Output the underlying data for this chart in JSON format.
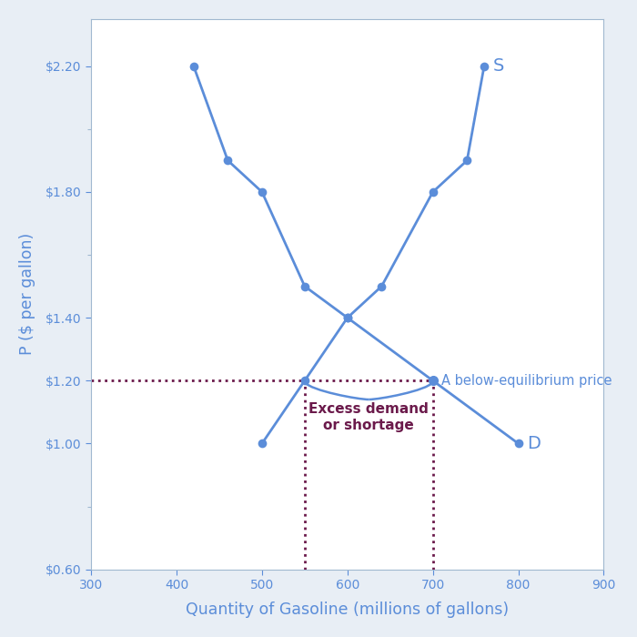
{
  "demand_x": [
    420,
    460,
    500,
    550,
    600,
    700,
    800
  ],
  "demand_y": [
    2.2,
    1.9,
    1.8,
    1.5,
    1.4,
    1.2,
    1.0
  ],
  "supply_x": [
    500,
    550,
    600,
    640,
    700,
    740,
    760
  ],
  "supply_y": [
    1.0,
    1.2,
    1.4,
    1.5,
    1.8,
    1.9,
    2.2
  ],
  "equilibrium_x": 600,
  "equilibrium_y": 1.4,
  "below_eq_price": 1.2,
  "supply_qty_at_below": 550,
  "demand_qty_at_below": 700,
  "curve_color": "#5b8dd9",
  "dashed_color": "#6b1a4b",
  "line_width": 2.0,
  "marker_size": 7,
  "xlabel": "Quantity of Gasoline (millions of gallons)",
  "ylabel": "P ($ per gallon)",
  "xlim": [
    300,
    900
  ],
  "ylim": [
    0.6,
    2.35
  ],
  "xticks": [
    300,
    400,
    500,
    600,
    700,
    800,
    900
  ],
  "yticks": [
    0.6,
    1.0,
    1.2,
    1.4,
    1.8,
    2.2
  ],
  "label_S": "S",
  "label_D": "D",
  "annotation_below_eq": "A below-equilibrium price",
  "annotation_excess": "Excess demand\nor shortage",
  "bg_color": "#ffffff",
  "fig_bg_color": "#e8eef5"
}
